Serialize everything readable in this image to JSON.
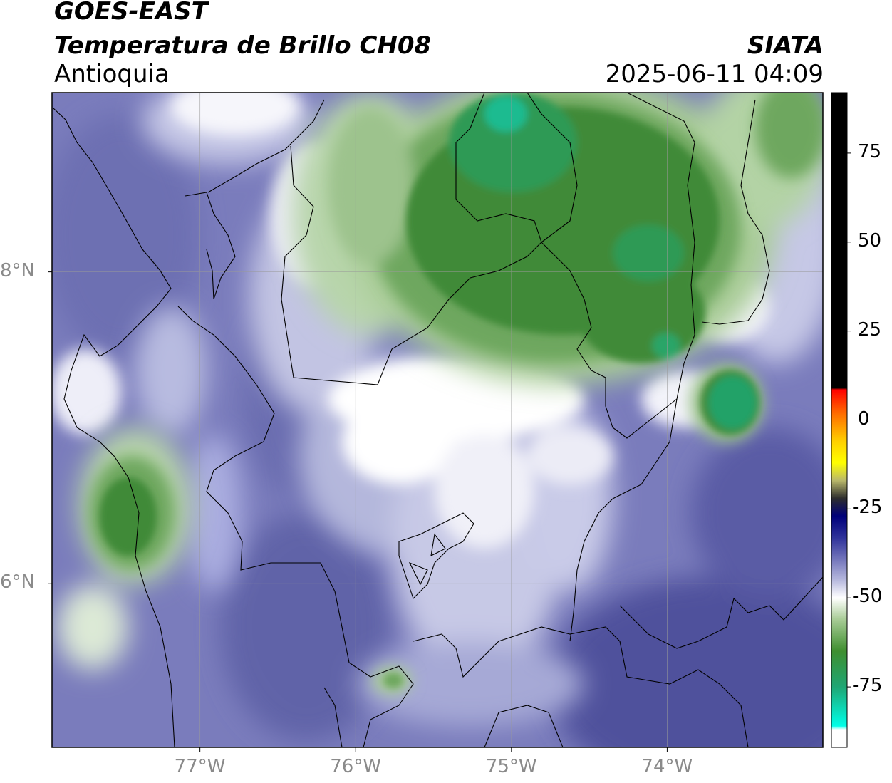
{
  "header": {
    "satellite": "GOES-EAST",
    "product": "Temperatura de Brillo CH08",
    "region": "Antioquia",
    "organization": "SIATA",
    "datetime": "2025-06-11 04:09"
  },
  "map": {
    "lon_range": [
      -77.95,
      -73.0
    ],
    "lat_range": [
      4.95,
      9.15
    ],
    "lon_ticks": [
      {
        "value": -77,
        "label": "77°W"
      },
      {
        "value": -76,
        "label": "76°W"
      },
      {
        "value": -75,
        "label": "75°W"
      },
      {
        "value": -74,
        "label": "74°W"
      }
    ],
    "lat_ticks": [
      {
        "value": 8,
        "label": "8°N"
      },
      {
        "value": 6,
        "label": "6°N"
      }
    ],
    "grid": true,
    "colors": {
      "background_blue": "#7a7cbc",
      "dark_blue": "#4f519c",
      "light_blue": "#a8abd6",
      "white": "#ffffff",
      "light_green": "#b5d2a8",
      "mid_green": "#6ea75e",
      "dark_green": "#3f8a37",
      "teal_green": "#21a46d"
    }
  },
  "colorbar": {
    "range": [
      -92,
      92
    ],
    "ticks": [
      {
        "value": 75,
        "label": "75"
      },
      {
        "value": 50,
        "label": "50"
      },
      {
        "value": 25,
        "label": "25"
      },
      {
        "value": 0,
        "label": "0"
      },
      {
        "value": -25,
        "label": "-25"
      },
      {
        "value": -50,
        "label": "-50"
      },
      {
        "value": -75,
        "label": "-75"
      }
    ],
    "stops": [
      {
        "value": 92,
        "color": "#000000"
      },
      {
        "value": 9,
        "color": "#000000"
      },
      {
        "value": 8.5,
        "color": "#ff0000"
      },
      {
        "value": 2,
        "color": "#ff6a00"
      },
      {
        "value": -6,
        "color": "#ffd000"
      },
      {
        "value": -12,
        "color": "#ffff00"
      },
      {
        "value": -17,
        "color": "#b9b86a"
      },
      {
        "value": -22,
        "color": "#2d2d2d"
      },
      {
        "value": -27,
        "color": "#00007a"
      },
      {
        "value": -33,
        "color": "#2e319a"
      },
      {
        "value": -40,
        "color": "#7d7fc0"
      },
      {
        "value": -45,
        "color": "#b7b9de"
      },
      {
        "value": -50,
        "color": "#ffffff"
      },
      {
        "value": -56,
        "color": "#a8cc96"
      },
      {
        "value": -65,
        "color": "#3e8f2f"
      },
      {
        "value": -75,
        "color": "#1fa674"
      },
      {
        "value": -86,
        "color": "#00ffe8"
      },
      {
        "value": -87,
        "color": "#ffffff"
      },
      {
        "value": -92,
        "color": "#ffffff"
      }
    ]
  }
}
